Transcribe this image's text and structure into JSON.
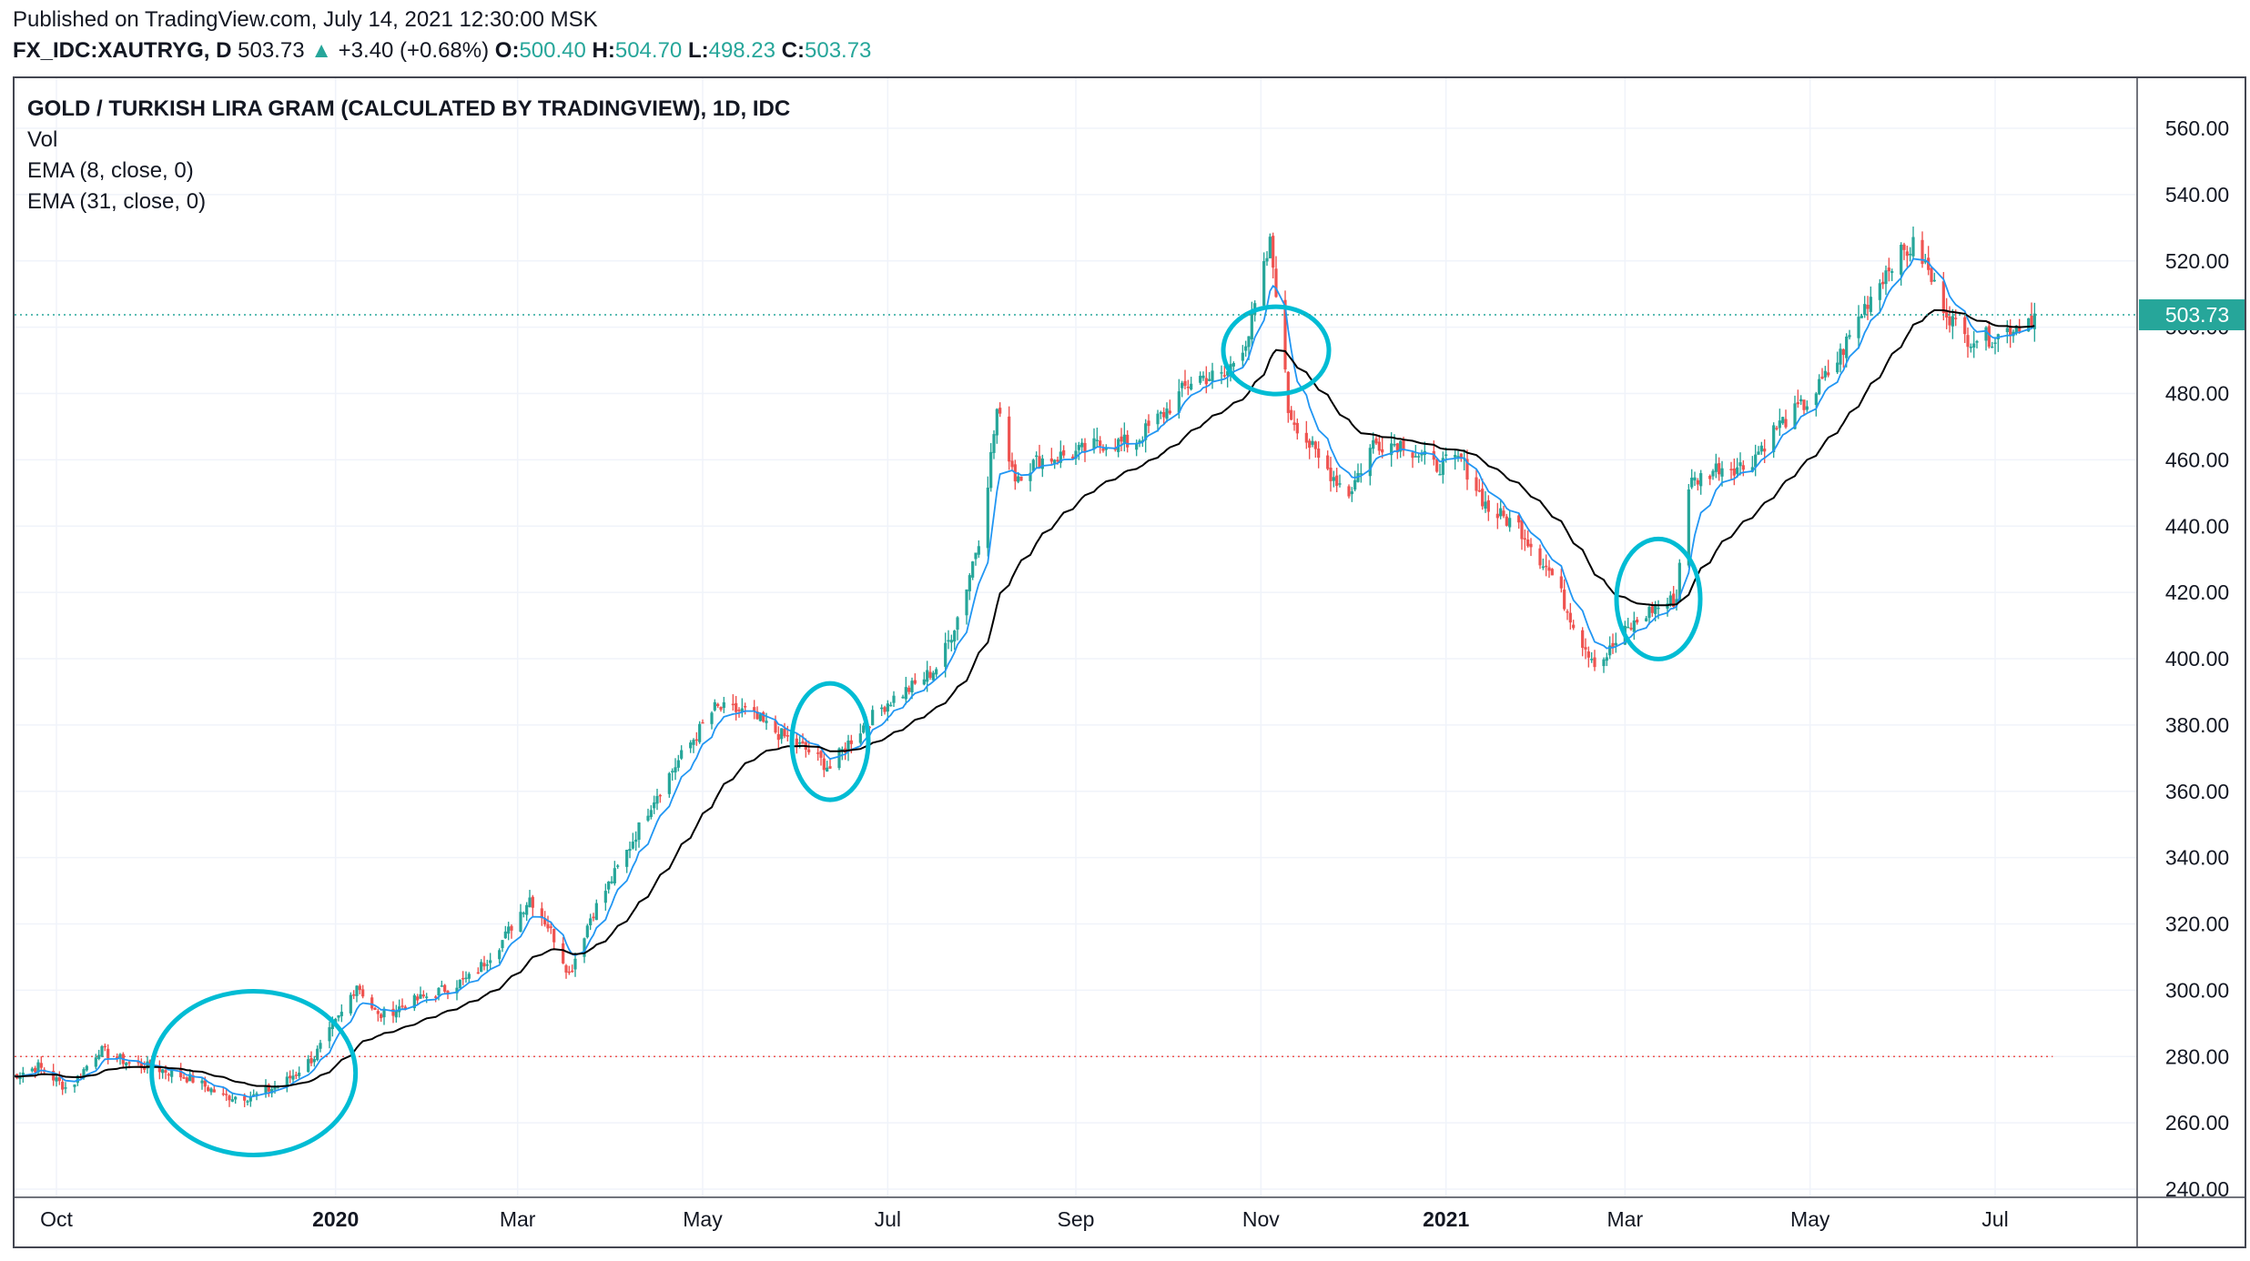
{
  "header": {
    "published": "Published on TradingView.com, July 14, 2021 12:30:00 MSK",
    "symbol": "FX_IDC:XAUTRYG, D",
    "last": "503.73",
    "change": "+3.40 (+0.68%)",
    "open_label": "O:",
    "open": "500.40",
    "high_label": "H:",
    "high": "504.70",
    "low_label": "L:",
    "low": "498.23",
    "close_label": "C:",
    "close": "503.73"
  },
  "legend": {
    "title": "GOLD / TURKISH LIRA GRAM (CALCULATED BY TRADINGVIEW), 1D, IDC",
    "vol": "Vol",
    "ema_fast": "EMA (8, close, 0)",
    "ema_slow": "EMA (31, close, 0)"
  },
  "colors": {
    "up": "#26a69a",
    "down": "#ef5350",
    "ema_fast": "#2196f3",
    "ema_slow": "#000000",
    "annotation": "#00bcd4",
    "price_line": "#26a69a",
    "price_label_bg": "#26a69a"
  },
  "chart_data": {
    "type": "candlestick",
    "title": "GOLD / TURKISH LIRA GRAM (CALCULATED BY TRADINGVIEW), 1D, IDC",
    "ylim": [
      232,
      570
    ],
    "y_ticks": [
      560,
      540,
      520,
      500,
      480,
      460,
      440,
      420,
      400,
      380,
      360,
      340,
      320,
      300,
      280,
      260,
      240
    ],
    "y_tick_labels": [
      "560.00",
      "540.00",
      "520.00",
      "500.00",
      "480.00",
      "460.00",
      "440.00",
      "420.00",
      "400.00",
      "380.00",
      "360.00",
      "340.00",
      "320.00",
      "300.00",
      "280.00",
      "260.00",
      "240.00"
    ],
    "x_ticks": [
      {
        "label": "Oct",
        "date": "2019-10-01",
        "bold": false
      },
      {
        "label": "2020",
        "date": "2020-01-01",
        "bold": true
      },
      {
        "label": "Mar",
        "date": "2020-03-01",
        "bold": false
      },
      {
        "label": "May",
        "date": "2020-05-01",
        "bold": false
      },
      {
        "label": "Jul",
        "date": "2020-07-01",
        "bold": false
      },
      {
        "label": "Sep",
        "date": "2020-09-01",
        "bold": false
      },
      {
        "label": "Nov",
        "date": "2020-11-01",
        "bold": false
      },
      {
        "label": "2021",
        "date": "2021-01-01",
        "bold": true
      },
      {
        "label": "Mar",
        "date": "2021-03-01",
        "bold": false
      },
      {
        "label": "May",
        "date": "2021-05-01",
        "bold": false
      },
      {
        "label": "Jul",
        "date": "2021-07-01",
        "bold": false
      }
    ],
    "x_range": [
      "2019-09-15",
      "2021-09-01"
    ],
    "last_price": 503.73,
    "last_price_label": "503.73",
    "reference_level": 280,
    "close_series": [
      [
        "2019-09-16",
        274
      ],
      [
        "2019-09-25",
        277
      ],
      [
        "2019-10-05",
        270
      ],
      [
        "2019-10-15",
        282
      ],
      [
        "2019-10-25",
        278
      ],
      [
        "2019-11-05",
        276
      ],
      [
        "2019-11-15",
        273
      ],
      [
        "2019-11-25",
        268
      ],
      [
        "2019-12-05",
        268
      ],
      [
        "2019-12-15",
        272
      ],
      [
        "2019-12-25",
        280
      ],
      [
        "2020-01-03",
        293
      ],
      [
        "2020-01-08",
        302
      ],
      [
        "2020-01-15",
        292
      ],
      [
        "2020-01-25",
        296
      ],
      [
        "2020-02-05",
        300
      ],
      [
        "2020-02-15",
        304
      ],
      [
        "2020-02-25",
        315
      ],
      [
        "2020-03-05",
        328
      ],
      [
        "2020-03-12",
        318
      ],
      [
        "2020-03-18",
        305
      ],
      [
        "2020-03-25",
        322
      ],
      [
        "2020-04-05",
        340
      ],
      [
        "2020-04-15",
        358
      ],
      [
        "2020-04-25",
        372
      ],
      [
        "2020-05-05",
        385
      ],
      [
        "2020-05-15",
        384
      ],
      [
        "2020-05-25",
        378
      ],
      [
        "2020-06-05",
        372
      ],
      [
        "2020-06-12",
        367
      ],
      [
        "2020-06-20",
        377
      ],
      [
        "2020-07-01",
        387
      ],
      [
        "2020-07-10",
        392
      ],
      [
        "2020-07-18",
        398
      ],
      [
        "2020-07-25",
        415
      ],
      [
        "2020-08-01",
        440
      ],
      [
        "2020-08-06",
        475
      ],
      [
        "2020-08-12",
        455
      ],
      [
        "2020-08-20",
        460
      ],
      [
        "2020-09-01",
        462
      ],
      [
        "2020-09-10",
        465
      ],
      [
        "2020-09-20",
        465
      ],
      [
        "2020-10-01",
        475
      ],
      [
        "2020-10-10",
        485
      ],
      [
        "2020-10-20",
        485
      ],
      [
        "2020-10-28",
        498
      ],
      [
        "2020-11-04",
        525
      ],
      [
        "2020-11-07",
        505
      ],
      [
        "2020-11-10",
        475
      ],
      [
        "2020-11-20",
        460
      ],
      [
        "2020-11-30",
        450
      ],
      [
        "2020-12-08",
        465
      ],
      [
        "2020-12-18",
        465
      ],
      [
        "2020-12-28",
        458
      ],
      [
        "2021-01-06",
        460
      ],
      [
        "2021-01-15",
        445
      ],
      [
        "2021-01-25",
        440
      ],
      [
        "2021-02-05",
        425
      ],
      [
        "2021-02-15",
        405
      ],
      [
        "2021-02-20",
        398
      ],
      [
        "2021-03-01",
        408
      ],
      [
        "2021-03-10",
        415
      ],
      [
        "2021-03-18",
        418
      ],
      [
        "2021-03-21",
        452
      ],
      [
        "2021-04-01",
        458
      ],
      [
        "2021-04-10",
        458
      ],
      [
        "2021-04-20",
        470
      ],
      [
        "2021-05-01",
        478
      ],
      [
        "2021-05-10",
        490
      ],
      [
        "2021-05-20",
        508
      ],
      [
        "2021-05-28",
        520
      ],
      [
        "2021-06-05",
        525
      ],
      [
        "2021-06-12",
        510
      ],
      [
        "2021-06-20",
        497
      ],
      [
        "2021-07-01",
        497
      ],
      [
        "2021-07-14",
        503.73
      ]
    ],
    "annotations": [
      {
        "type": "ellipse",
        "date": "2019-12-05",
        "price": 275
      },
      {
        "type": "circle",
        "date": "2020-06-12",
        "price": 375
      },
      {
        "type": "circle",
        "date": "2020-11-06",
        "price": 493
      },
      {
        "type": "circle",
        "date": "2021-03-12",
        "price": 418
      }
    ]
  }
}
